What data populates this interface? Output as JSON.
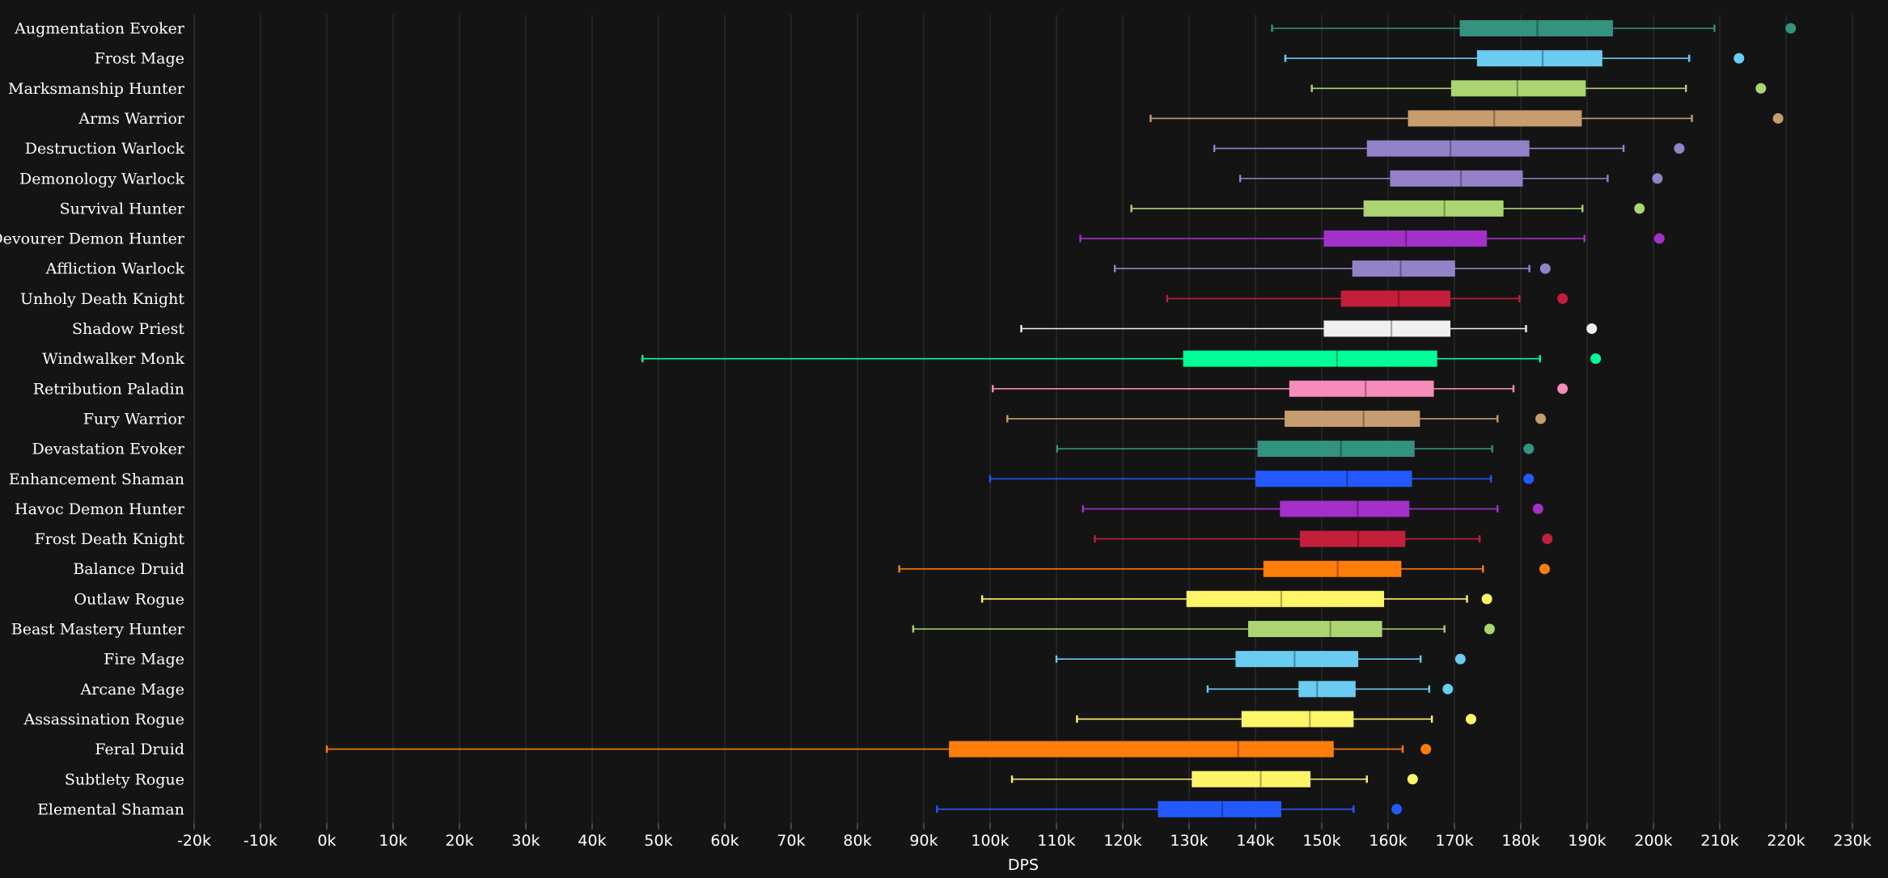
{
  "chart_data": {
    "type": "box",
    "orientation": "horizontal",
    "xlabel": "DPS",
    "xlim": [
      -20000,
      230000
    ],
    "x_tick_step": 10000,
    "x_tick_labels": [
      "-20k",
      "-10k",
      "0k",
      "10k",
      "20k",
      "30k",
      "40k",
      "50k",
      "60k",
      "70k",
      "80k",
      "90k",
      "100k",
      "110k",
      "120k",
      "130k",
      "140k",
      "150k",
      "160k",
      "170k",
      "180k",
      "190k",
      "200k",
      "210k",
      "220k",
      "230k"
    ],
    "grid": "vertical",
    "series": [
      {
        "name": "Augmentation Evoker",
        "color": "#33937f",
        "min": 142500,
        "q1": 170800,
        "median": 182500,
        "q3": 193900,
        "max": 209200,
        "outlier": 220700
      },
      {
        "name": "Frost Mage",
        "color": "#69ccf0",
        "min": 144500,
        "q1": 173400,
        "median": 183300,
        "q3": 192300,
        "max": 205400,
        "outlier": 212900
      },
      {
        "name": "Marksmanship Hunter",
        "color": "#abd473",
        "min": 148500,
        "q1": 169500,
        "median": 179500,
        "q3": 189800,
        "max": 204900,
        "outlier": 216200
      },
      {
        "name": "Arms Warrior",
        "color": "#c79c6e",
        "min": 124200,
        "q1": 163000,
        "median": 176000,
        "q3": 189200,
        "max": 205800,
        "outlier": 218800
      },
      {
        "name": "Destruction Warlock",
        "color": "#9482c9",
        "min": 133800,
        "q1": 156800,
        "median": 169400,
        "q3": 181300,
        "max": 195500,
        "outlier": 203900
      },
      {
        "name": "Demonology Warlock",
        "color": "#9482c9",
        "min": 137700,
        "q1": 160300,
        "median": 171000,
        "q3": 180300,
        "max": 193100,
        "outlier": 200600
      },
      {
        "name": "Survival Hunter",
        "color": "#abd473",
        "min": 121300,
        "q1": 156300,
        "median": 168500,
        "q3": 177400,
        "max": 189300,
        "outlier": 197900
      },
      {
        "name": "Devourer Demon Hunter",
        "color": "#a330c9",
        "min": 113600,
        "q1": 150300,
        "median": 162700,
        "q3": 174900,
        "max": 189600,
        "outlier": 200900
      },
      {
        "name": "Affliction Warlock",
        "color": "#9482c9",
        "min": 118800,
        "q1": 154600,
        "median": 161900,
        "q3": 170100,
        "max": 181300,
        "outlier": 183700
      },
      {
        "name": "Unholy Death Knight",
        "color": "#c41e3a",
        "min": 126700,
        "q1": 152900,
        "median": 161600,
        "q3": 169400,
        "max": 179800,
        "outlier": 186300
      },
      {
        "name": "Shadow Priest",
        "color": "#f0f0f0",
        "min": 104700,
        "q1": 150300,
        "median": 160500,
        "q3": 169400,
        "max": 180800,
        "outlier": 190700
      },
      {
        "name": "Windwalker Monk",
        "color": "#00ff98",
        "min": 47600,
        "q1": 129100,
        "median": 152300,
        "q3": 167400,
        "max": 182900,
        "outlier": 191300
      },
      {
        "name": "Retribution Paladin",
        "color": "#f58cba",
        "min": 100400,
        "q1": 145100,
        "median": 156600,
        "q3": 166900,
        "max": 178900,
        "outlier": 186300
      },
      {
        "name": "Fury Warrior",
        "color": "#c79c6e",
        "min": 102600,
        "q1": 144400,
        "median": 156300,
        "q3": 164800,
        "max": 176500,
        "outlier": 183000
      },
      {
        "name": "Devastation Evoker",
        "color": "#33937f",
        "min": 110100,
        "q1": 140300,
        "median": 152900,
        "q3": 164000,
        "max": 175700,
        "outlier": 181200
      },
      {
        "name": "Enhancement Shaman",
        "color": "#2359ff",
        "min": 100000,
        "q1": 140000,
        "median": 153800,
        "q3": 163600,
        "max": 175500,
        "outlier": 181200
      },
      {
        "name": "Havoc Demon Hunter",
        "color": "#a330c9",
        "min": 114000,
        "q1": 143700,
        "median": 155400,
        "q3": 163200,
        "max": 176500,
        "outlier": 182600
      },
      {
        "name": "Frost Death Knight",
        "color": "#c41e3a",
        "min": 115800,
        "q1": 146700,
        "median": 155500,
        "q3": 162600,
        "max": 173800,
        "outlier": 184000
      },
      {
        "name": "Balance Druid",
        "color": "#ff7d0a",
        "min": 86300,
        "q1": 141200,
        "median": 152400,
        "q3": 162000,
        "max": 174300,
        "outlier": 183600
      },
      {
        "name": "Outlaw Rogue",
        "color": "#fff569",
        "min": 98800,
        "q1": 129600,
        "median": 143900,
        "q3": 159400,
        "max": 171900,
        "outlier": 174900
      },
      {
        "name": "Beast Mastery Hunter",
        "color": "#abd473",
        "min": 88400,
        "q1": 138900,
        "median": 151300,
        "q3": 159100,
        "max": 168500,
        "outlier": 175300
      },
      {
        "name": "Fire Mage",
        "color": "#69ccf0",
        "min": 110000,
        "q1": 137000,
        "median": 145900,
        "q3": 155500,
        "max": 164900,
        "outlier": 170900
      },
      {
        "name": "Arcane Mage",
        "color": "#69ccf0",
        "min": 132800,
        "q1": 146500,
        "median": 149300,
        "q3": 155100,
        "max": 166200,
        "outlier": 169000
      },
      {
        "name": "Assassination Rogue",
        "color": "#fff569",
        "min": 113100,
        "q1": 137900,
        "median": 148200,
        "q3": 154800,
        "max": 166600,
        "outlier": 172500
      },
      {
        "name": "Feral Druid",
        "color": "#ff7d0a",
        "min": 0,
        "q1": 93800,
        "median": 137400,
        "q3": 151800,
        "max": 162200,
        "outlier": 165700
      },
      {
        "name": "Subtlety Rogue",
        "color": "#fff569",
        "min": 103300,
        "q1": 130400,
        "median": 140800,
        "q3": 148300,
        "max": 156800,
        "outlier": 163700
      },
      {
        "name": "Elemental Shaman",
        "color": "#2359ff",
        "min": 92000,
        "q1": 125300,
        "median": 135000,
        "q3": 143900,
        "max": 154800,
        "outlier": 161300
      }
    ]
  }
}
